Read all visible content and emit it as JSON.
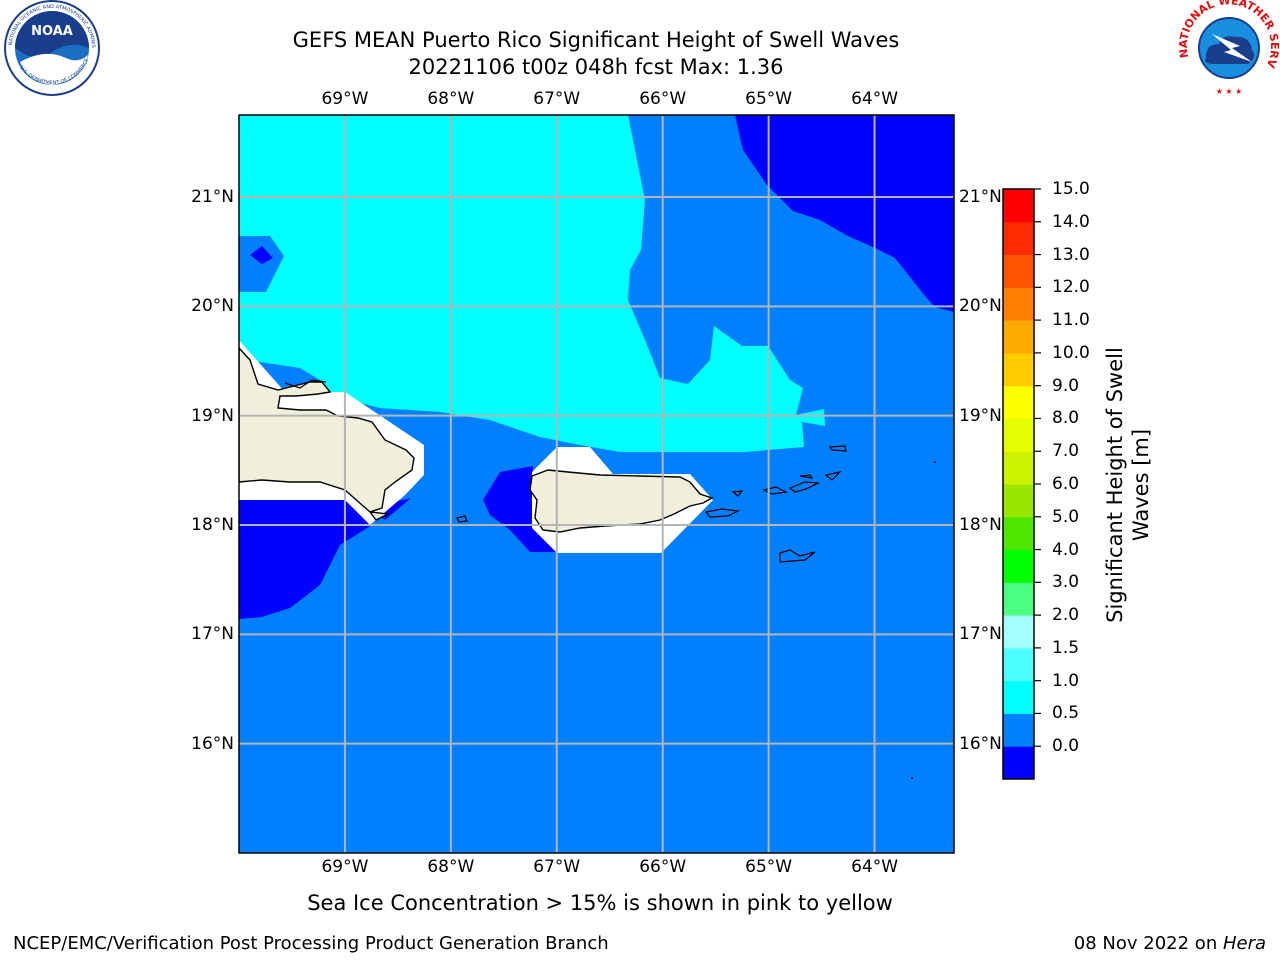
{
  "title_line1": "GEFS MEAN Puerto Rico Significant Height of Swell Waves",
  "title_line2": "20221106 t00z 048h fcst   Max: 1.36",
  "logos": {
    "left": "noaa-logo",
    "right": "national-weather-service-logo"
  },
  "map": {
    "lon_ticks": [
      "69°W",
      "68°W",
      "67°W",
      "66°W",
      "65°W",
      "64°W"
    ],
    "lon_values": [
      -69,
      -68,
      -67,
      -66,
      -65,
      -64
    ],
    "lat_ticks": [
      "21°N",
      "20°N",
      "19°N",
      "18°N",
      "17°N",
      "16°N"
    ],
    "lat_values": [
      21,
      20,
      19,
      18,
      17,
      16
    ],
    "lon_range": [
      -70,
      -63.25
    ],
    "lat_range": [
      15.0,
      21.75
    ],
    "gridlines": true
  },
  "colorbar": {
    "title": "Significant Height of Swell Waves [m]",
    "title_line1": "Significant Height of Swell",
    "title_line2": "Waves [m]",
    "labels": [
      "15.0",
      "14.0",
      "13.0",
      "12.0",
      "11.0",
      "10.0",
      "9.0",
      "8.0",
      "7.0",
      "6.0",
      "5.0",
      "4.0",
      "3.0",
      "2.0",
      "1.5",
      "1.0",
      "0.5",
      "0.0"
    ],
    "colors_bottom_to_top": [
      "#0000ff",
      "#0080ff",
      "#00ffff",
      "#4dffff",
      "#a6ffff",
      "#4dff80",
      "#00ff00",
      "#4ce600",
      "#99e600",
      "#ccf200",
      "#e6ff00",
      "#ffff00",
      "#ffcc00",
      "#ffaa00",
      "#ff8000",
      "#ff5500",
      "#ff2a00",
      "#ff0000"
    ]
  },
  "legend_colors": {
    "land": "#efefdc",
    "deep": "#0000ff",
    "mid": "#0080ff",
    "cyan": "#00ffff",
    "ice_mask": "#ffffff"
  },
  "caption": "Sea Ice Concentration > 15% is shown in pink to yellow",
  "footer": {
    "left": "NCEP/EMC/Verification Post Processing Product Generation Branch",
    "date": "08 Nov 2022 on ",
    "host": "Hera"
  }
}
